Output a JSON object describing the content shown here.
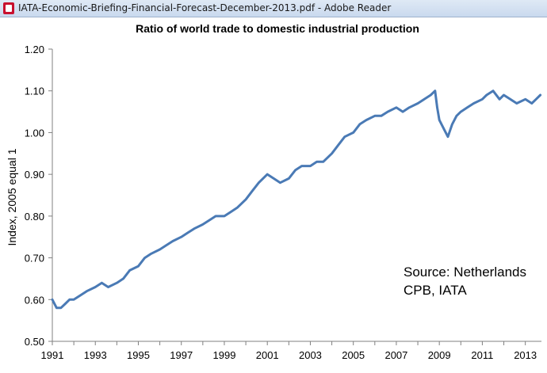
{
  "window": {
    "title": "IATA-Economic-Briefing-Financial-Forecast-December-2013.pdf - Adobe Reader",
    "icon": "pdf-document-icon"
  },
  "chart_data": {
    "type": "line",
    "title": "Ratio of world trade to domestic industrial production",
    "xlabel": "",
    "ylabel": "Index, 2005 equal 1",
    "xlim": [
      1991,
      2013.75
    ],
    "ylim": [
      0.5,
      1.2
    ],
    "y_ticks": [
      "0.50",
      "0.60",
      "0.70",
      "0.80",
      "0.90",
      "1.00",
      "1.10",
      "1.20"
    ],
    "x_ticks": [
      "1991",
      "1993",
      "1995",
      "1997",
      "1999",
      "2001",
      "2003",
      "2005",
      "2007",
      "2009",
      "2011",
      "2013"
    ],
    "grid": false,
    "annotation": [
      "Source: Netherlands",
      "CPB, IATA"
    ],
    "series": [
      {
        "color": "#4a7ab5",
        "x": [
          1991.0,
          1991.1,
          1991.2,
          1991.4,
          1991.6,
          1991.8,
          1992.0,
          1992.3,
          1992.6,
          1993.0,
          1993.3,
          1993.6,
          1994.0,
          1994.3,
          1994.6,
          1995.0,
          1995.3,
          1995.6,
          1996.0,
          1996.3,
          1996.6,
          1997.0,
          1997.3,
          1997.6,
          1998.0,
          1998.3,
          1998.6,
          1999.0,
          1999.3,
          1999.6,
          2000.0,
          2000.3,
          2000.6,
          2001.0,
          2001.3,
          2001.6,
          2002.0,
          2002.3,
          2002.6,
          2003.0,
          2003.3,
          2003.6,
          2004.0,
          2004.3,
          2004.6,
          2005.0,
          2005.3,
          2005.6,
          2006.0,
          2006.3,
          2006.6,
          2007.0,
          2007.3,
          2007.6,
          2008.0,
          2008.3,
          2008.6,
          2008.8,
          2008.9,
          2009.0,
          2009.2,
          2009.4,
          2009.6,
          2009.8,
          2010.0,
          2010.3,
          2010.6,
          2011.0,
          2011.2,
          2011.5,
          2011.8,
          2012.0,
          2012.3,
          2012.6,
          2013.0,
          2013.3,
          2013.5,
          2013.7
        ],
        "y": [
          0.6,
          0.59,
          0.58,
          0.58,
          0.59,
          0.6,
          0.6,
          0.61,
          0.62,
          0.63,
          0.64,
          0.63,
          0.64,
          0.65,
          0.67,
          0.68,
          0.7,
          0.71,
          0.72,
          0.73,
          0.74,
          0.75,
          0.76,
          0.77,
          0.78,
          0.79,
          0.8,
          0.8,
          0.81,
          0.82,
          0.84,
          0.86,
          0.88,
          0.9,
          0.89,
          0.88,
          0.89,
          0.91,
          0.92,
          0.92,
          0.93,
          0.93,
          0.95,
          0.97,
          0.99,
          1.0,
          1.02,
          1.03,
          1.04,
          1.04,
          1.05,
          1.06,
          1.05,
          1.06,
          1.07,
          1.08,
          1.09,
          1.1,
          1.06,
          1.03,
          1.01,
          0.99,
          1.02,
          1.04,
          1.05,
          1.06,
          1.07,
          1.08,
          1.09,
          1.1,
          1.08,
          1.09,
          1.08,
          1.07,
          1.08,
          1.07,
          1.08,
          1.09
        ]
      }
    ]
  }
}
